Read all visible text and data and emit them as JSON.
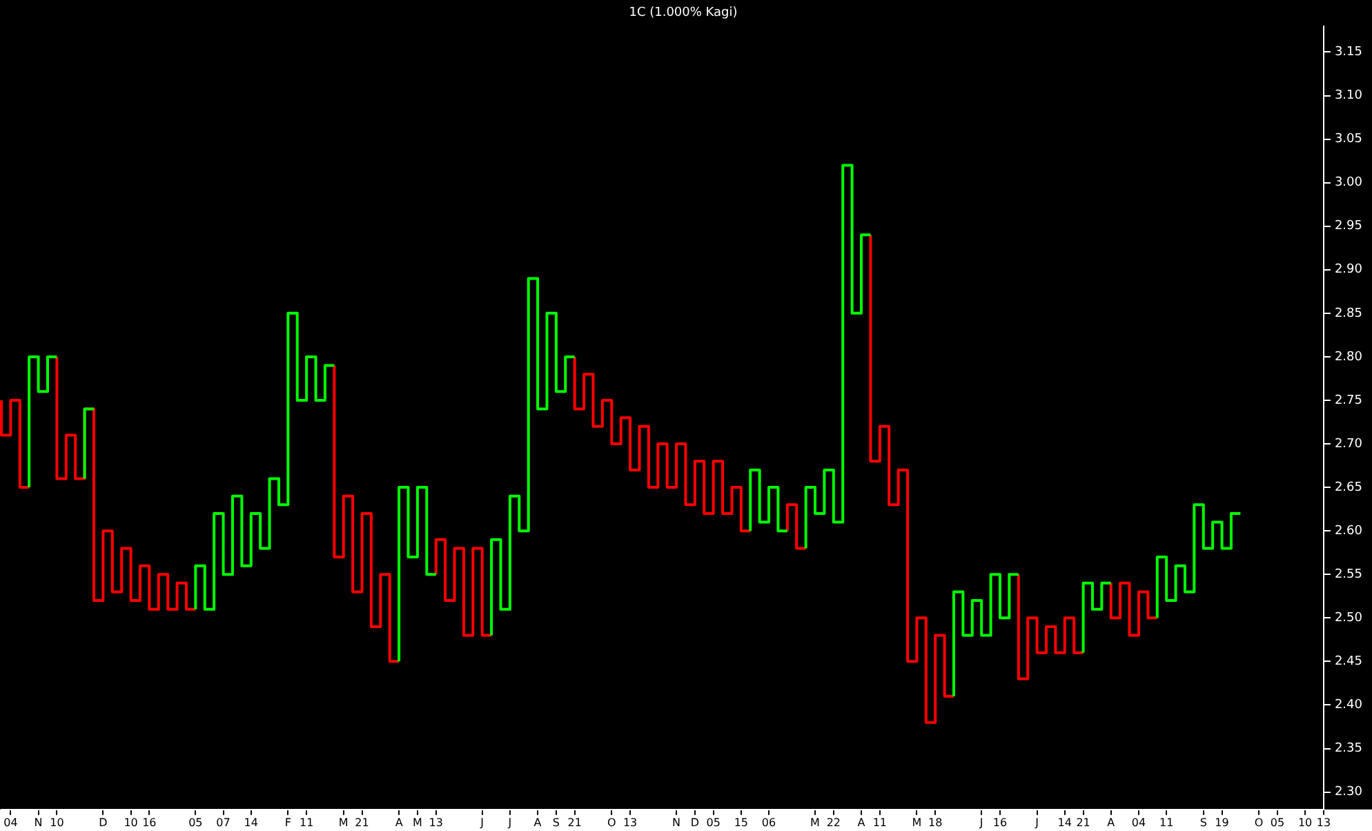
{
  "chart_data": {
    "type": "step",
    "title": "1C (1.000% Kagi)",
    "categories": [
      null,
      "04",
      null,
      null,
      "N",
      null,
      "10",
      null,
      null,
      null,
      null,
      "D",
      null,
      null,
      "10",
      null,
      "16",
      null,
      null,
      null,
      null,
      "05",
      null,
      null,
      "07",
      null,
      null,
      "14",
      null,
      null,
      null,
      "F",
      null,
      "11",
      null,
      null,
      null,
      "M",
      null,
      "21",
      null,
      null,
      null,
      "A",
      null,
      "M",
      null,
      "13",
      null,
      null,
      null,
      null,
      "J",
      null,
      null,
      "J",
      null,
      null,
      "A",
      null,
      "S",
      null,
      "21",
      null,
      null,
      null,
      "O",
      null,
      "13",
      null,
      null,
      null,
      null,
      "N",
      null,
      "D",
      null,
      "05",
      null,
      null,
      "15",
      null,
      null,
      "06",
      null,
      null,
      null,
      null,
      "M",
      null,
      "22",
      null,
      null,
      "A",
      null,
      "11",
      null,
      null,
      null,
      "M",
      null,
      "18",
      null,
      null,
      null,
      null,
      "J",
      null,
      "16",
      null,
      null,
      null,
      "J",
      null,
      null,
      "14",
      null,
      "21",
      null,
      null,
      "A",
      null,
      null,
      "04",
      null,
      null,
      "11",
      null,
      null,
      null,
      "S",
      null,
      "19",
      null,
      null,
      null,
      "O",
      null,
      "05",
      null,
      null,
      "10",
      null,
      "13"
    ],
    "series": [
      {
        "color": "#00ff00",
        "values": [
          null,
          null,
          null,
          2.65,
          2.8,
          2.76,
          2.8,
          null,
          null,
          2.66,
          2.74,
          null,
          null,
          null,
          null,
          null,
          null,
          null,
          null,
          null,
          null,
          2.51,
          2.56,
          2.51,
          2.62,
          2.55,
          2.64,
          2.56,
          2.62,
          2.58,
          2.66,
          2.63,
          2.85,
          2.75,
          2.8,
          2.75,
          2.79,
          null,
          null,
          null,
          null,
          null,
          null,
          2.45,
          2.65,
          2.57,
          2.65,
          2.55,
          null,
          null,
          null,
          null,
          null,
          2.48,
          2.59,
          2.51,
          2.64,
          2.6,
          2.89,
          2.74,
          2.85,
          2.76,
          2.8,
          null,
          null,
          null,
          null,
          null,
          null,
          null,
          null,
          null,
          null,
          null,
          null,
          null,
          null,
          null,
          null,
          null,
          null,
          2.6,
          2.67,
          2.61,
          2.65,
          2.6,
          null,
          2.58,
          2.65,
          2.62,
          2.67,
          2.61,
          3.02,
          2.85,
          2.94,
          null,
          null,
          null,
          null,
          null,
          null,
          null,
          null,
          2.41,
          2.53,
          2.48,
          2.52,
          2.48,
          2.55,
          2.5,
          2.55,
          null,
          null,
          null,
          null,
          null,
          null,
          2.46,
          2.54,
          2.51,
          2.54,
          null,
          null,
          null,
          null,
          2.5,
          2.57,
          2.52,
          2.56,
          2.53,
          2.63,
          2.58,
          2.61,
          2.58,
          2.62,
          null,
          null,
          null,
          null,
          null,
          null,
          null,
          null,
          null
        ]
      },
      {
        "color": "#ff0000",
        "values": [
          2.75,
          2.71,
          2.75,
          2.65,
          null,
          null,
          2.8,
          2.66,
          2.71,
          2.66,
          2.74,
          2.52,
          2.6,
          2.53,
          2.58,
          2.52,
          2.56,
          2.51,
          2.55,
          2.51,
          2.54,
          2.51,
          null,
          null,
          null,
          null,
          null,
          null,
          null,
          null,
          null,
          null,
          null,
          null,
          null,
          null,
          2.79,
          2.57,
          2.64,
          2.53,
          2.62,
          2.49,
          2.55,
          2.45,
          null,
          null,
          null,
          2.55,
          2.59,
          2.52,
          2.58,
          2.48,
          2.58,
          2.48,
          null,
          null,
          null,
          null,
          null,
          null,
          null,
          null,
          2.8,
          2.74,
          2.78,
          2.72,
          2.75,
          2.7,
          2.73,
          2.67,
          2.72,
          2.65,
          2.7,
          2.65,
          2.7,
          2.63,
          2.68,
          2.62,
          2.68,
          2.62,
          2.65,
          2.6,
          null,
          null,
          null,
          2.6,
          2.63,
          2.58,
          null,
          null,
          null,
          null,
          null,
          null,
          2.94,
          2.68,
          2.72,
          2.63,
          2.67,
          2.45,
          2.5,
          2.38,
          2.48,
          2.41,
          null,
          null,
          null,
          null,
          null,
          null,
          2.55,
          2.43,
          2.5,
          2.46,
          2.49,
          2.46,
          2.5,
          2.46,
          null,
          null,
          2.54,
          2.5,
          2.54,
          2.48,
          2.53,
          2.5,
          null,
          null,
          null,
          null,
          null,
          null,
          null,
          null,
          null,
          null,
          null,
          null,
          null,
          null,
          null,
          null,
          null,
          null
        ]
      }
    ],
    "ylim": [
      2.28,
      3.18
    ],
    "yticks": [
      {
        "value": 2.3,
        "label": "2.30"
      },
      {
        "value": 2.35,
        "label": "2.35"
      },
      {
        "value": 2.4,
        "label": "2.40"
      },
      {
        "value": 2.45,
        "label": "2.45"
      },
      {
        "value": 2.5,
        "label": "2.50"
      },
      {
        "value": 2.55,
        "label": "2.55"
      },
      {
        "value": 2.6,
        "label": "2.60"
      },
      {
        "value": 2.65,
        "label": "2.65"
      },
      {
        "value": 2.7,
        "label": "2.70"
      },
      {
        "value": 2.75,
        "label": "2.75"
      },
      {
        "value": 2.8,
        "label": "2.80"
      },
      {
        "value": 2.85,
        "label": "2.85"
      },
      {
        "value": 2.9,
        "label": "2.90"
      },
      {
        "value": 2.95,
        "label": "2.95"
      },
      {
        "value": 3.0,
        "label": "3.00"
      },
      {
        "value": 3.05,
        "label": "3.05"
      },
      {
        "value": 3.1,
        "label": "3.10"
      },
      {
        "value": 3.15,
        "label": "3.15"
      }
    ]
  }
}
